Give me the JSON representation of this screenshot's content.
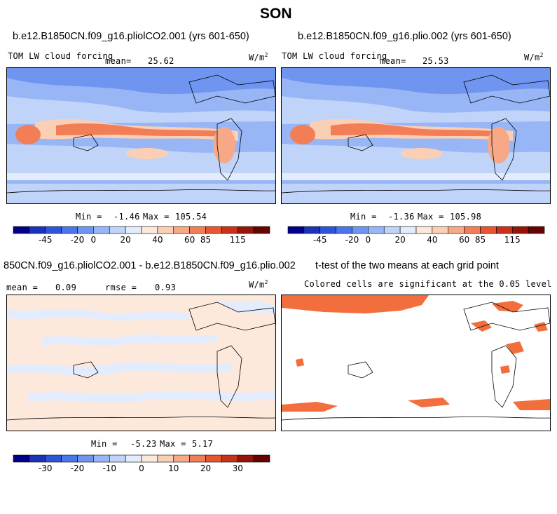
{
  "figure": {
    "title": "SON"
  },
  "panels": [
    {
      "id": "case1",
      "title": "b.e12.B1850CN.f09_g16.pliolCO2.001 (yrs 601-650)",
      "left_label": "TOM LW cloud forcing",
      "mean_label": "mean=",
      "mean_value": "25.62",
      "units": "W/m",
      "units_exp": "2",
      "min_label": "Min =",
      "min_value": "-1.46",
      "max_label": "Max =",
      "max_value": "105.54"
    },
    {
      "id": "case2",
      "title": "b.e12.B1850CN.f09_g16.plio.002 (yrs 601-650)",
      "left_label": "TOM LW cloud forcing",
      "mean_label": "mean=",
      "mean_value": "25.53",
      "units": "W/m",
      "units_exp": "2",
      "min_label": "Min =",
      "min_value": "-1.36",
      "max_label": "Max =",
      "max_value": "105.98"
    },
    {
      "id": "diff",
      "title": "850CN.f09_g16.pliolCO2.001 - b.e12.B1850CN.f09_g16.plio.002",
      "mean_label": "mean =",
      "mean_value": "0.09",
      "rmse_label": "rmse =",
      "rmse_value": "0.93",
      "units": "W/m",
      "units_exp": "2",
      "min_label": "Min =",
      "min_value": "-5.23",
      "max_label": "Max =",
      "max_value": "5.17"
    },
    {
      "id": "ttest",
      "title": "t-test of the two means at each grid point",
      "subtitle": "Colored cells are significant at the 0.05 level"
    }
  ],
  "chart_data": [
    {
      "type": "heatmap",
      "name_ref": "case1",
      "colorbar": {
        "tick_labels": [
          "-45",
          "-20",
          "0",
          "20",
          "40",
          "60",
          "85",
          "115"
        ],
        "colors": [
          "#000088",
          "#1a33b8",
          "#2d55d9",
          "#4a76eb",
          "#6f95f0",
          "#98b6f5",
          "#c0d4fa",
          "#e3ecfd",
          "#fde9dc",
          "#fbcfb4",
          "#f7a987",
          "#f27e58",
          "#e8552f",
          "#c8321a",
          "#971408",
          "#650400"
        ]
      }
    },
    {
      "type": "heatmap",
      "name_ref": "case2",
      "colorbar": {
        "tick_labels": [
          "-45",
          "-20",
          "0",
          "20",
          "40",
          "60",
          "85",
          "115"
        ],
        "colors": [
          "#000088",
          "#1a33b8",
          "#2d55d9",
          "#4a76eb",
          "#6f95f0",
          "#98b6f5",
          "#c0d4fa",
          "#e3ecfd",
          "#fde9dc",
          "#fbcfb4",
          "#f7a987",
          "#f27e58",
          "#e8552f",
          "#c8321a",
          "#971408",
          "#650400"
        ]
      }
    },
    {
      "type": "heatmap",
      "name_ref": "diff",
      "colorbar": {
        "tick_labels": [
          "-30",
          "-20",
          "-10",
          "0",
          "10",
          "20",
          "30"
        ],
        "colors": [
          "#000088",
          "#1a33b8",
          "#2d55d9",
          "#4a76eb",
          "#6f95f0",
          "#98b6f5",
          "#c0d4fa",
          "#e3ecfd",
          "#fde9dc",
          "#fbcfb4",
          "#f7a987",
          "#f27e58",
          "#e8552f",
          "#c8321a",
          "#971408",
          "#650400"
        ]
      }
    },
    {
      "type": "heatmap",
      "name_ref": "ttest",
      "significance_color": "#f26e3c"
    }
  ]
}
